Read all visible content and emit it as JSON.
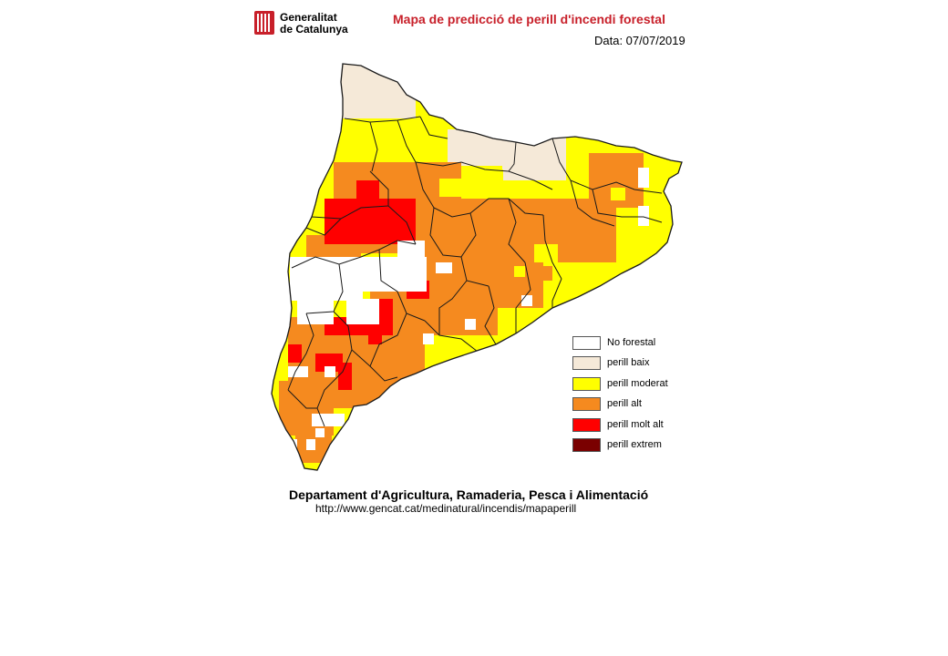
{
  "header": {
    "logo_text": "Generalitat\nde Catalunya",
    "title": "Mapa de predicció de perill d'incendi forestal",
    "date_label": "Data: 07/07/2019"
  },
  "map": {
    "region": "Catalunya",
    "icon": "region-outline-map",
    "colors": {
      "no_forestal": "#ffffff",
      "baix": "#f5e9d8",
      "moderat": "#ffff00",
      "alt": "#f58a1f",
      "molt_alt": "#ff0000",
      "extrem": "#7a0000",
      "border": "#1a1a1a"
    }
  },
  "legend": {
    "items": [
      {
        "label": "No forestal",
        "color": "#ffffff"
      },
      {
        "label": "perill baix",
        "color": "#f5e9d8"
      },
      {
        "label": "perill moderat",
        "color": "#ffff00"
      },
      {
        "label": "perill alt",
        "color": "#f58a1f"
      },
      {
        "label": "perill molt alt",
        "color": "#ff0000"
      },
      {
        "label": "perill extrem",
        "color": "#7a0000"
      }
    ]
  },
  "footer": {
    "department": "Departament d'Agricultura, Ramaderia, Pesca i Alimentació",
    "url": "http://www.gencat.cat/medinatural/incendis/mapaperill"
  }
}
